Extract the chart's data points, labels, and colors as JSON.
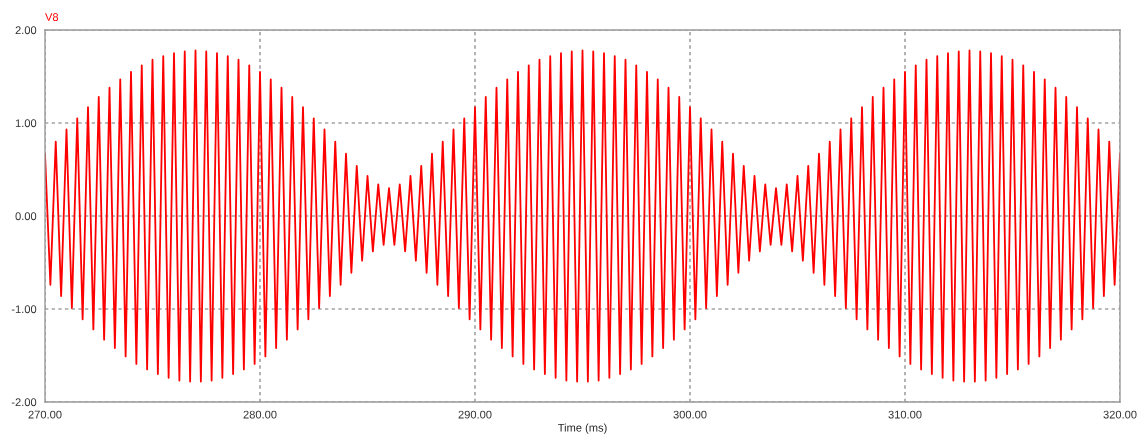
{
  "chart_data": {
    "type": "line",
    "xlabel": "Time (ms)",
    "xlim": [
      270,
      320
    ],
    "ylim": [
      -2,
      2
    ],
    "xticks": [
      {
        "value": 270,
        "label": "270.00"
      },
      {
        "value": 280,
        "label": "280.00"
      },
      {
        "value": 290,
        "label": "290.00"
      },
      {
        "value": 300,
        "label": "300.00"
      },
      {
        "value": 310,
        "label": "310.00"
      },
      {
        "value": 320,
        "label": "320.00"
      }
    ],
    "yticks": [
      {
        "value": -2,
        "label": "-2.00"
      },
      {
        "value": -1,
        "label": "-1.00"
      },
      {
        "value": 0,
        "label": "0.00"
      },
      {
        "value": 1,
        "label": "1.00"
      },
      {
        "value": 2,
        "label": "2.00"
      }
    ],
    "grid": true,
    "marker": "none",
    "line_style": "solid",
    "series": [
      {
        "name": "V8",
        "color": "#ff0000",
        "x": [
          270,
          270.25,
          270.5,
          270.75,
          271,
          271.25,
          271.5,
          271.75,
          272,
          272.25,
          272.5,
          272.75,
          273,
          273.25,
          273.5,
          273.75,
          274,
          274.25,
          274.5,
          274.75,
          275,
          275.25,
          275.5,
          275.75,
          276,
          276.25,
          276.5,
          276.75,
          277,
          277.25,
          277.5,
          277.75,
          278,
          278.25,
          278.5,
          278.75,
          279,
          279.25,
          279.5,
          279.75,
          280,
          280.25,
          280.5,
          280.75,
          281,
          281.25,
          281.5,
          281.75,
          282,
          282.25,
          282.5,
          282.75,
          283,
          283.25,
          283.5,
          283.75,
          284,
          284.25,
          284.5,
          284.75,
          285,
          285.25,
          285.5,
          285.75,
          286,
          286.25,
          286.5,
          286.75,
          287,
          287.25,
          287.5,
          287.75,
          288,
          288.25,
          288.5,
          288.75,
          289,
          289.25,
          289.5,
          289.75,
          290,
          290.25,
          290.5,
          290.75,
          291,
          291.25,
          291.5,
          291.75,
          292,
          292.25,
          292.5,
          292.75,
          293,
          293.25,
          293.5,
          293.75,
          294,
          294.25,
          294.5,
          294.75,
          295,
          295.25,
          295.5,
          295.75,
          296,
          296.25,
          296.5,
          296.75,
          297,
          297.25,
          297.5,
          297.75,
          298,
          298.25,
          298.5,
          298.75,
          299,
          299.25,
          299.5,
          299.75,
          300,
          300.25,
          300.5,
          300.75,
          301,
          301.25,
          301.5,
          301.75,
          302,
          302.25,
          302.5,
          302.75,
          303,
          303.25,
          303.5,
          303.75,
          304,
          304.25,
          304.5,
          304.75,
          305,
          305.25,
          305.5,
          305.75,
          306,
          306.25,
          306.5,
          306.75,
          307,
          307.25,
          307.5,
          307.75,
          308,
          308.25,
          308.5,
          308.75,
          309,
          309.25,
          309.5,
          309.75,
          310,
          310.25,
          310.5,
          310.75,
          311,
          311.25,
          311.5,
          311.75,
          312,
          312.25,
          312.5,
          312.75,
          313,
          313.25,
          313.5,
          313.75,
          314,
          314.25,
          314.5,
          314.75,
          315,
          315.25,
          315.5,
          315.75,
          316,
          316.25,
          316.5,
          316.75,
          317,
          317.25,
          317.5,
          317.75,
          318,
          318.25,
          318.5,
          318.75,
          319,
          319.25,
          319.5,
          319.75,
          320
        ],
        "values": [
          0.67,
          -0.74,
          0.8,
          -0.86,
          0.93,
          -0.99,
          1.05,
          -1.11,
          1.17,
          -1.22,
          1.28,
          -1.33,
          1.38,
          -1.42,
          1.47,
          -1.51,
          1.55,
          -1.59,
          1.62,
          -1.65,
          1.68,
          -1.7,
          1.72,
          -1.74,
          1.75,
          -1.77,
          1.77,
          -1.78,
          1.78,
          -1.78,
          1.77,
          -1.77,
          1.75,
          -1.74,
          1.72,
          -1.7,
          1.68,
          -1.65,
          1.62,
          -1.59,
          1.55,
          -1.51,
          1.47,
          -1.42,
          1.38,
          -1.33,
          1.28,
          -1.22,
          1.17,
          -1.11,
          1.05,
          -0.99,
          0.93,
          -0.86,
          0.8,
          -0.74,
          0.67,
          -0.61,
          0.54,
          -0.48,
          0.43,
          -0.38,
          0.34,
          -0.31,
          0.3,
          -0.31,
          0.34,
          -0.38,
          0.43,
          -0.48,
          0.54,
          -0.61,
          0.67,
          -0.74,
          0.8,
          -0.86,
          0.93,
          -0.99,
          1.05,
          -1.11,
          1.17,
          -1.22,
          1.28,
          -1.33,
          1.38,
          -1.42,
          1.47,
          -1.51,
          1.55,
          -1.59,
          1.62,
          -1.65,
          1.68,
          -1.7,
          1.72,
          -1.74,
          1.75,
          -1.77,
          1.77,
          -1.78,
          1.78,
          -1.78,
          1.77,
          -1.77,
          1.75,
          -1.74,
          1.72,
          -1.7,
          1.68,
          -1.65,
          1.62,
          -1.59,
          1.55,
          -1.51,
          1.47,
          -1.42,
          1.38,
          -1.33,
          1.28,
          -1.22,
          1.17,
          -1.11,
          1.05,
          -0.99,
          0.93,
          -0.86,
          0.8,
          -0.74,
          0.67,
          -0.61,
          0.54,
          -0.48,
          0.43,
          -0.38,
          0.34,
          -0.31,
          0.3,
          -0.31,
          0.34,
          -0.38,
          0.43,
          -0.48,
          0.54,
          -0.61,
          0.67,
          -0.74,
          0.8,
          -0.86,
          0.93,
          -0.99,
          1.05,
          -1.11,
          1.17,
          -1.22,
          1.28,
          -1.33,
          1.38,
          -1.42,
          1.47,
          -1.51,
          1.55,
          -1.59,
          1.62,
          -1.65,
          1.68,
          -1.7,
          1.72,
          -1.74,
          1.75,
          -1.77,
          1.77,
          -1.78,
          1.78,
          -1.78,
          1.77,
          -1.77,
          1.75,
          -1.74,
          1.72,
          -1.7,
          1.68,
          -1.65,
          1.62,
          -1.59,
          1.55,
          -1.51,
          1.47,
          -1.42,
          1.38,
          -1.33,
          1.28,
          -1.22,
          1.17,
          -1.11,
          1.05,
          -0.99,
          0.93,
          -0.86,
          0.8,
          -0.74,
          0.67
        ]
      }
    ]
  }
}
